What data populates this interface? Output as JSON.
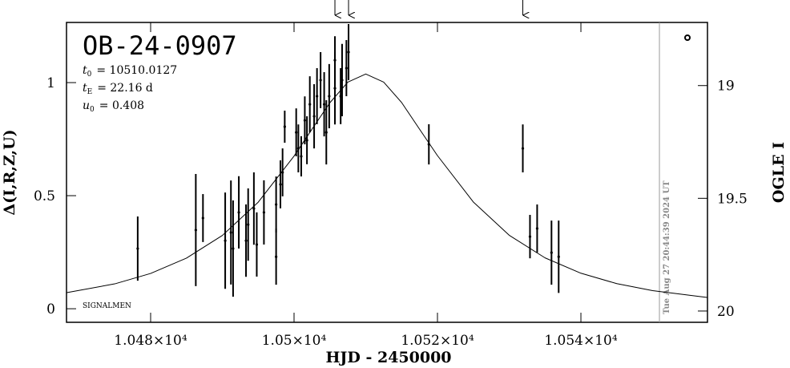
{
  "chart_data": {
    "type": "scatter",
    "title": "OB-24-0907",
    "parameters": [
      {
        "symbol": "t",
        "sub": "0",
        "text": "= 10510.0127"
      },
      {
        "symbol": "t",
        "sub": "E",
        "text": "= 22.16 d"
      },
      {
        "symbol": "u",
        "sub": "0",
        "text": "= 0.408"
      }
    ],
    "annotation": "SIGNALMEN",
    "timestamp": "Tue Aug 27 20:44:39 2024 UT",
    "time_marker": 10550.95,
    "arrows": [
      10505.7,
      10507.6,
      10531.9
    ],
    "xlabel": "HJD - 2450000",
    "ylabel": "Δ(I,R,Z,U)",
    "y2label": "OGLE I",
    "xlim": [
      10468.27,
      10557.65
    ],
    "ylim": [
      -0.06,
      1.266
    ],
    "y2lim": [
      18.72,
      20.05
    ],
    "xticks": [
      {
        "value": 10480,
        "label": "1.048×10⁴"
      },
      {
        "value": 10500,
        "label": "1.05×10⁴"
      },
      {
        "value": 10520,
        "label": "1.052×10⁴"
      },
      {
        "value": 10540,
        "label": "1.054×10⁴"
      }
    ],
    "yticks": [
      0,
      0.5,
      1
    ],
    "y2ticks": [
      19,
      19.5,
      20
    ],
    "series": [
      {
        "type": "errorbar",
        "color": "#000000",
        "x": [
          10478.2,
          10486.3,
          10487.3,
          10490.4,
          10491.2,
          10491.5,
          10492.3,
          10493.3,
          10493.6,
          10494.4,
          10494.8,
          10495.8,
          10497.5,
          10497.5,
          10498.1,
          10498.4,
          10498.7,
          10500.3,
          10500.6,
          10501.0,
          10501.5,
          10501.8,
          10502.2,
          10502.8,
          10503.2,
          10503.7,
          10504.2,
          10504.5,
          10504.9,
          10505.7,
          10505.7,
          10506.5,
          10506.7,
          10507.3,
          10507.6,
          10518.8,
          10531.9,
          10532.9,
          10533.9,
          10535.9,
          10536.9
        ],
        "values": [
          0.266,
          0.348,
          0.401,
          0.301,
          0.337,
          0.266,
          0.426,
          0.301,
          0.372,
          0.443,
          0.284,
          0.426,
          0.23,
          0.461,
          0.55,
          0.603,
          0.805,
          0.78,
          0.709,
          0.674,
          0.833,
          0.745,
          0.904,
          0.851,
          0.94,
          1.011,
          0.904,
          0.78,
          0.94,
          0.975,
          1.099,
          0.94,
          1.011,
          1.064,
          1.135,
          0.727,
          0.709,
          0.319,
          0.355,
          0.248,
          0.23
        ],
        "errors": [
          0.142,
          0.248,
          0.106,
          0.213,
          0.23,
          0.213,
          0.16,
          0.16,
          0.16,
          0.16,
          0.142,
          0.142,
          0.124,
          0.124,
          0.106,
          0.106,
          0.071,
          0.106,
          0.106,
          0.089,
          0.106,
          0.106,
          0.124,
          0.142,
          0.124,
          0.124,
          0.142,
          0.142,
          0.142,
          0.16,
          0.106,
          0.124,
          0.16,
          0.124,
          0.124,
          0.089,
          0.106,
          0.096,
          0.106,
          0.142,
          0.16
        ]
      },
      {
        "type": "line",
        "color": "#000000",
        "x": [
          10468.3,
          10475,
          10480,
          10485,
          10490,
          10495,
          10500,
          10502.5,
          10505,
          10507.5,
          10510,
          10512.5,
          10515,
          10517.5,
          10520,
          10525,
          10530,
          10535,
          10540,
          10545,
          10550,
          10557.6
        ],
        "values": [
          0.071,
          0.11,
          0.156,
          0.224,
          0.324,
          0.471,
          0.675,
          0.794,
          0.911,
          1.002,
          1.038,
          1.002,
          0.912,
          0.794,
          0.677,
          0.472,
          0.325,
          0.225,
          0.157,
          0.111,
          0.08,
          0.05
        ]
      }
    ]
  }
}
